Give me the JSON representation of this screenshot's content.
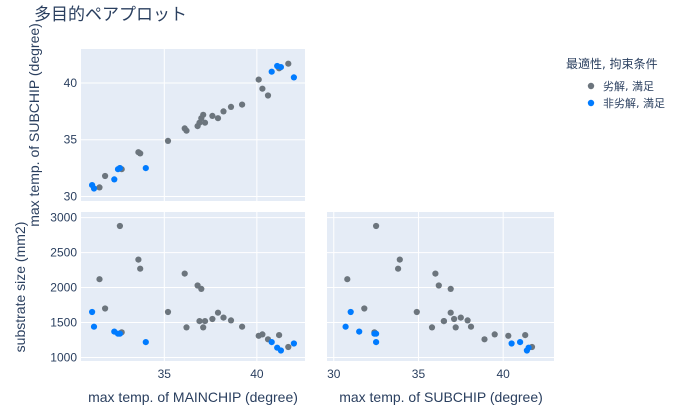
{
  "chart_data": {
    "type": "scatter",
    "title": "多目的ペアプロット",
    "legend": {
      "title": "最適性, 拘束条件",
      "placement": "top-right",
      "entries": [
        {
          "name": "劣解, 満足",
          "color": "#6C757D"
        },
        {
          "name": "非劣解, 満足",
          "color": "#007BFF"
        }
      ]
    },
    "grid": true,
    "panels": {
      "top_left": {
        "xlabel": "",
        "ylabel": "max temp. of SUBCHIP (degree)",
        "xlim": [
          30.5,
          42.6
        ],
        "ylim": [
          29.6,
          43.0
        ],
        "yticks": [
          30,
          35,
          40
        ]
      },
      "bottom_left": {
        "xlabel": "max temp. of MAINCHIP (degree)",
        "ylabel": "substrate size (mm2)",
        "xlim": [
          30.5,
          42.6
        ],
        "ylim": [
          950,
          3080
        ],
        "xticks": [
          35,
          40
        ],
        "yticks": [
          1000,
          1500,
          2000,
          2500,
          3000
        ]
      },
      "bottom_right": {
        "xlabel": "max temp. of SUBCHIP (degree)",
        "ylabel": "",
        "xlim": [
          29.6,
          43.0
        ],
        "ylim": [
          950,
          3080
        ],
        "xticks": [
          30,
          35,
          40
        ]
      }
    },
    "series": [
      {
        "name": "劣解, 満足",
        "color": "#6C757D",
        "mainchip": [
          31.5,
          31.8,
          32.6,
          32.7,
          33.6,
          33.7,
          35.2,
          36.1,
          36.2,
          36.8,
          36.9,
          37.0,
          37.1,
          37.2,
          37.6,
          37.9,
          38.2,
          38.6,
          39.2,
          40.1,
          40.3,
          40.6,
          41.2,
          41.7
        ],
        "subchip": [
          30.8,
          31.8,
          32.5,
          32.4,
          33.9,
          33.8,
          34.9,
          36.0,
          35.8,
          36.2,
          36.5,
          36.9,
          37.2,
          36.5,
          37.1,
          36.9,
          37.5,
          37.9,
          38.1,
          40.3,
          39.5,
          38.9,
          41.3,
          41.7
        ],
        "substrate": [
          2120,
          1700,
          2880,
          1360,
          2400,
          2270,
          1650,
          2200,
          1430,
          2030,
          1520,
          1980,
          1430,
          1520,
          1550,
          1640,
          1570,
          1530,
          1440,
          1310,
          1330,
          1260,
          1320,
          1150
        ]
      },
      {
        "name": "非劣解, 満足",
        "color": "#007BFF",
        "mainchip": [
          31.1,
          31.2,
          32.3,
          32.5,
          32.6,
          34.0,
          40.8,
          41.1,
          41.3,
          42.0
        ],
        "subchip": [
          31.0,
          30.7,
          31.5,
          32.4,
          32.5,
          32.5,
          41.0,
          41.5,
          41.4,
          40.5
        ],
        "substrate": [
          1650,
          1440,
          1370,
          1340,
          1340,
          1220,
          1220,
          1140,
          1100,
          1200
        ]
      }
    ]
  }
}
